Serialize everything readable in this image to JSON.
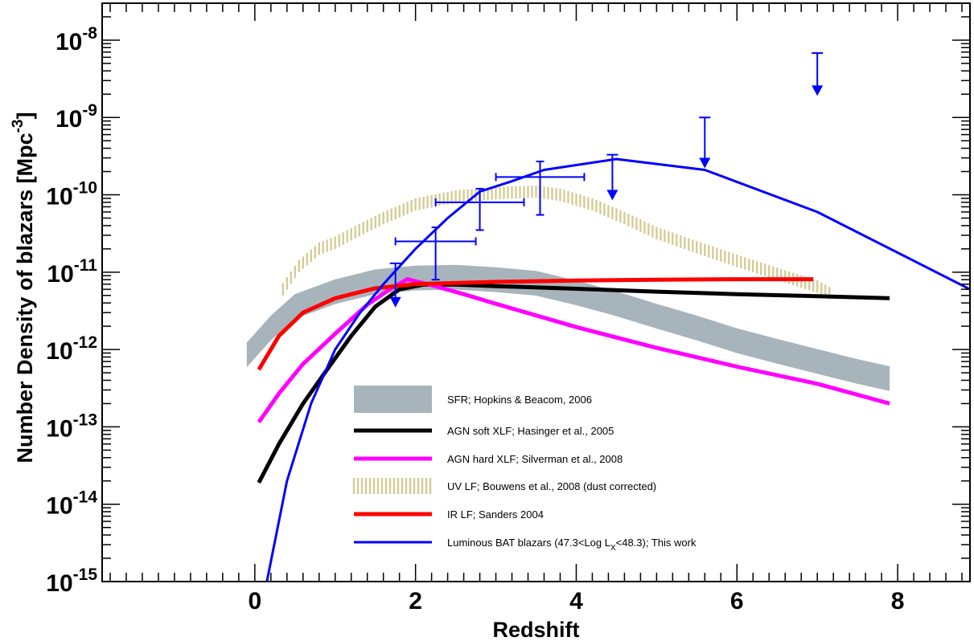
{
  "chart_data": {
    "type": "line",
    "xlabel": "Redshift",
    "ylabel": "Number Density of blazars [Mpc^-3]",
    "ylabel_parts": {
      "main": "Number Density of blazars [Mpc",
      "sup": "-3",
      "close": "]"
    },
    "xlim": [
      -1.9,
      8.9
    ],
    "ylim": [
      1e-15,
      3e-08
    ],
    "yscale": "log",
    "x_ticks": [
      0,
      2,
      4,
      6,
      8
    ],
    "y_ticks": [
      {
        "value": 1e-15,
        "base": "10",
        "exp": "-15"
      },
      {
        "value": 1e-14,
        "base": "10",
        "exp": "-14"
      },
      {
        "value": 1e-13,
        "base": "10",
        "exp": "-13"
      },
      {
        "value": 1e-12,
        "base": "10",
        "exp": "-12"
      },
      {
        "value": 1e-11,
        "base": "10",
        "exp": "-11"
      },
      {
        "value": 1e-10,
        "base": "10",
        "exp": "-10"
      },
      {
        "value": 1e-09,
        "base": "10",
        "exp": "-9"
      },
      {
        "value": 1e-08,
        "base": "10",
        "exp": "-8"
      }
    ],
    "legend_position": "bottom-center",
    "series": [
      {
        "name": "SFR; Hopkins & Beacom, 2006",
        "style": "band",
        "color": "#a8b4bc",
        "points": [
          [
            -0.1,
            8.5e-13
          ],
          [
            0.2,
            1.9e-12
          ],
          [
            0.5,
            3.6e-12
          ],
          [
            1.0,
            5.6e-12
          ],
          [
            1.5,
            7.5e-12
          ],
          [
            2.0,
            8.4e-12
          ],
          [
            2.5,
            8.6e-12
          ],
          [
            3.0,
            8e-12
          ],
          [
            3.5,
            7.2e-12
          ],
          [
            4.0,
            5.4e-12
          ],
          [
            4.5,
            3.9e-12
          ],
          [
            5.0,
            2.7e-12
          ],
          [
            5.5,
            1.9e-12
          ],
          [
            6.0,
            1.3e-12
          ],
          [
            6.5,
            9.5e-13
          ],
          [
            7.0,
            7e-13
          ],
          [
            7.5,
            5.2e-13
          ],
          [
            7.9,
            4.2e-13
          ]
        ],
        "dex": 0.32
      },
      {
        "name": "AGN soft XLF; Hasinger et al., 2005",
        "style": "line",
        "color": "#000000",
        "points": [
          [
            0.05,
            1.9e-14
          ],
          [
            0.3,
            6e-14
          ],
          [
            0.6,
            2e-13
          ],
          [
            0.9,
            5.5e-13
          ],
          [
            1.2,
            1.5e-12
          ],
          [
            1.5,
            3.6e-12
          ],
          [
            1.8,
            6e-12
          ],
          [
            2.1,
            6.9e-12
          ],
          [
            2.5,
            6.9e-12
          ],
          [
            3.0,
            6.6e-12
          ],
          [
            4.0,
            6.1e-12
          ],
          [
            5.0,
            5.6e-12
          ],
          [
            6.0,
            5.2e-12
          ],
          [
            7.0,
            4.9e-12
          ],
          [
            7.9,
            4.6e-12
          ]
        ]
      },
      {
        "name": "AGN hard XLF; Silverman et al., 2008",
        "style": "line",
        "color": "#ff00ff",
        "points": [
          [
            0.05,
            1.15e-13
          ],
          [
            0.3,
            2.7e-13
          ],
          [
            0.6,
            6.5e-13
          ],
          [
            1.0,
            1.6e-12
          ],
          [
            1.4,
            3.8e-12
          ],
          [
            1.7,
            6.2e-12
          ],
          [
            1.9,
            8.1e-12
          ],
          [
            2.2,
            6.8e-12
          ],
          [
            2.6,
            5.2e-12
          ],
          [
            3.0,
            3.9e-12
          ],
          [
            4.0,
            1.95e-12
          ],
          [
            5.0,
            1.05e-12
          ],
          [
            6.0,
            6e-13
          ],
          [
            7.0,
            3.6e-13
          ],
          [
            7.9,
            2e-13
          ]
        ]
      },
      {
        "name": "UV LF; Bouwens et al., 2008 (dust corrected)",
        "style": "hatched",
        "color": "#d4cc96",
        "points": [
          [
            0.35,
            6e-12
          ],
          [
            0.55,
            1.2e-11
          ],
          [
            0.8,
            2e-11
          ],
          [
            1.0,
            2.4e-11
          ],
          [
            1.3,
            3.5e-11
          ],
          [
            1.6,
            5e-11
          ],
          [
            2.0,
            7.5e-11
          ],
          [
            2.5,
            9.5e-11
          ],
          [
            3.0,
            1.05e-10
          ],
          [
            3.5,
            1.1e-10
          ],
          [
            3.8,
            1e-10
          ],
          [
            4.2,
            7.5e-11
          ],
          [
            4.6,
            5e-11
          ],
          [
            5.0,
            3.2e-11
          ],
          [
            5.5,
            2.1e-11
          ],
          [
            6.0,
            1.4e-11
          ],
          [
            6.5,
            9.5e-12
          ],
          [
            7.0,
            6.5e-12
          ],
          [
            7.2,
            5e-12
          ]
        ],
        "dex": 0.16
      },
      {
        "name": "IR LF; Sanders  2004",
        "style": "line",
        "color": "#ff0000",
        "points": [
          [
            0.05,
            5.5e-13
          ],
          [
            0.3,
            1.5e-12
          ],
          [
            0.6,
            3e-12
          ],
          [
            1.0,
            4.6e-12
          ],
          [
            1.5,
            6.2e-12
          ],
          [
            2.0,
            7e-12
          ],
          [
            3.0,
            7.5e-12
          ],
          [
            4.0,
            7.8e-12
          ],
          [
            5.0,
            8e-12
          ],
          [
            6.0,
            8.1e-12
          ],
          [
            6.95,
            8.1e-12
          ]
        ]
      },
      {
        "name": "Luminous BAT blazars (47.3<Log L_X<48.3); This work",
        "name_parts": {
          "main": "Luminous BAT blazars (47.3<Log L",
          "sub": "X",
          "rest": "<48.3); This work"
        },
        "style": "line",
        "color": "#0000ff",
        "points": [
          [
            0.15,
            1e-15
          ],
          [
            0.4,
            2e-14
          ],
          [
            0.7,
            2e-13
          ],
          [
            1.0,
            1e-12
          ],
          [
            1.3,
            2.9e-12
          ],
          [
            1.6,
            7e-12
          ],
          [
            2.0,
            2e-11
          ],
          [
            2.4,
            5e-11
          ],
          [
            2.8,
            1.1e-10
          ],
          [
            3.2,
            1.5e-10
          ],
          [
            3.6,
            2.1e-10
          ],
          [
            4.5,
            2.9e-10
          ],
          [
            5.6,
            2.1e-10
          ],
          [
            7.0,
            6e-11
          ],
          [
            8.9,
            6e-12
          ]
        ]
      }
    ],
    "error_points": [
      {
        "x": 2.25,
        "y": 2.5e-11,
        "xerr": [
          1.75,
          2.75
        ],
        "yerr": [
          8e-12,
          3.8e-11
        ]
      },
      {
        "x": 2.8,
        "y": 8e-11,
        "xerr": [
          2.25,
          3.35
        ],
        "yerr": [
          3.5e-11,
          1.2e-10
        ]
      },
      {
        "x": 3.55,
        "y": 1.7e-10,
        "xerr": [
          3.0,
          4.1
        ],
        "yerr": [
          5.5e-11,
          2.7e-10
        ]
      }
    ],
    "upper_limits": [
      {
        "x": 1.75,
        "y_top": 1.3e-11,
        "arrow_y": 3.5e-12
      },
      {
        "x": 4.45,
        "y_top": 3.3e-10,
        "arrow_y": 8.5e-11
      },
      {
        "x": 5.6,
        "y_top": 1e-09,
        "arrow_y": 2.2e-10
      },
      {
        "x": 7.0,
        "y_top": 6.8e-09,
        "arrow_y": 1.9e-09
      }
    ]
  }
}
